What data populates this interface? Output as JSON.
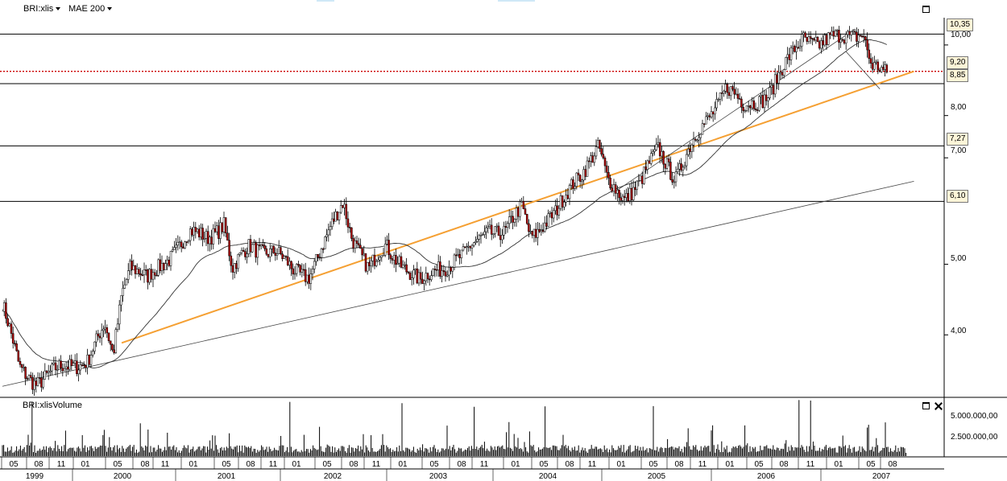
{
  "header": {
    "symbol_label": "BRI:xlis",
    "indicator_label": "MAE 200"
  },
  "volume_panel": {
    "title": "BRI:xlisVolume",
    "y_ticks": [
      "5.000.000,00",
      "2.500.000,00"
    ]
  },
  "price_axis": {
    "tick_labels": [
      "10,00",
      "8,00",
      "7,00",
      "5,00",
      "4,00"
    ]
  },
  "level_boxes": [
    "10,35",
    "9,20",
    "8,85",
    "7,27",
    "6,10"
  ],
  "colors": {
    "trendline_accent": "#f5a033",
    "current_price_line": "#cc0000",
    "price_box_fill": "#fdf5d8",
    "bearish_candle": "#b30000"
  },
  "chart_data": {
    "type": "candlestick",
    "title": "",
    "scale": "log",
    "ylim": [
      3.3,
      10.9
    ],
    "moving_average": "MAE 200",
    "horizontal_levels": [
      10.35,
      9.2,
      8.85,
      7.27,
      6.1
    ],
    "current_price": 9.2,
    "price_path": [
      [
        "1999-01",
        4.4
      ],
      [
        "1999-03",
        3.6
      ],
      [
        "1999-05",
        3.45
      ],
      [
        "1999-08",
        3.6
      ],
      [
        "1999-11",
        3.7
      ],
      [
        "2000-01",
        4.1
      ],
      [
        "2000-02",
        3.75
      ],
      [
        "2000-03",
        4.6
      ],
      [
        "2000-04",
        5.0
      ],
      [
        "2000-06",
        4.75
      ],
      [
        "2000-09",
        5.2
      ],
      [
        "2000-11",
        5.5
      ],
      [
        "2001-01",
        5.45
      ],
      [
        "2001-03",
        5.7
      ],
      [
        "2001-04",
        4.9
      ],
      [
        "2001-06",
        5.3
      ],
      [
        "2001-09",
        5.2
      ],
      [
        "2001-11",
        4.9
      ],
      [
        "2002-01",
        4.85
      ],
      [
        "2002-03",
        5.4
      ],
      [
        "2002-05",
        6.1
      ],
      [
        "2002-06",
        5.5
      ],
      [
        "2002-08",
        4.9
      ],
      [
        "2002-10",
        5.3
      ],
      [
        "2002-12",
        5.0
      ],
      [
        "2003-02",
        4.7
      ],
      [
        "2003-04",
        4.95
      ],
      [
        "2003-07",
        5.1
      ],
      [
        "2003-10",
        5.6
      ],
      [
        "2003-12",
        5.5
      ],
      [
        "2004-02",
        6.0
      ],
      [
        "2004-03",
        5.5
      ],
      [
        "2004-06",
        5.85
      ],
      [
        "2004-08",
        6.5
      ],
      [
        "2004-11",
        7.2
      ],
      [
        "2004-12",
        6.5
      ],
      [
        "2005-02",
        6.2
      ],
      [
        "2005-04",
        6.5
      ],
      [
        "2005-06",
        7.2
      ],
      [
        "2005-08",
        6.6
      ],
      [
        "2005-10",
        7.3
      ],
      [
        "2005-12",
        8.0
      ],
      [
        "2006-02",
        8.8
      ],
      [
        "2006-04",
        8.2
      ],
      [
        "2006-07",
        8.6
      ],
      [
        "2006-09",
        9.4
      ],
      [
        "2006-11",
        10.3
      ],
      [
        "2007-01",
        10.0
      ],
      [
        "2007-04",
        10.35
      ],
      [
        "2007-06",
        10.4
      ],
      [
        "2007-07",
        9.3
      ],
      [
        "2007-09",
        9.1
      ]
    ],
    "trendlines": [
      {
        "from": [
          "1999-01",
          3.4
        ],
        "to": [
          "2007-12",
          6.5
        ]
      },
      {
        "from": [
          "2000-03",
          3.9
        ],
        "to": [
          "2007-12",
          9.2
        ],
        "color": "#f5a033"
      },
      {
        "from": [
          "2005-01",
          6.3
        ],
        "to": [
          "2007-05",
          10.5
        ]
      },
      {
        "from": [
          "2007-04",
          9.8
        ],
        "to": [
          "2007-08",
          8.7
        ]
      }
    ],
    "volume_y_ticks": [
      5000000,
      2500000
    ],
    "x_month_labels": [
      "05",
      "08",
      "11",
      "01",
      "05",
      "08",
      "11",
      "01",
      "05",
      "08",
      "11",
      "01",
      "05",
      "08",
      "11",
      "01",
      "05",
      "08",
      "11",
      "01",
      "05",
      "08",
      "11",
      "01",
      "05",
      "08",
      "11",
      "01",
      "05",
      "08",
      "11",
      "01",
      "05",
      "08"
    ],
    "x_year_labels": [
      "1999",
      "2000",
      "2001",
      "2002",
      "2003",
      "2004",
      "2005",
      "2006",
      "2007"
    ]
  }
}
